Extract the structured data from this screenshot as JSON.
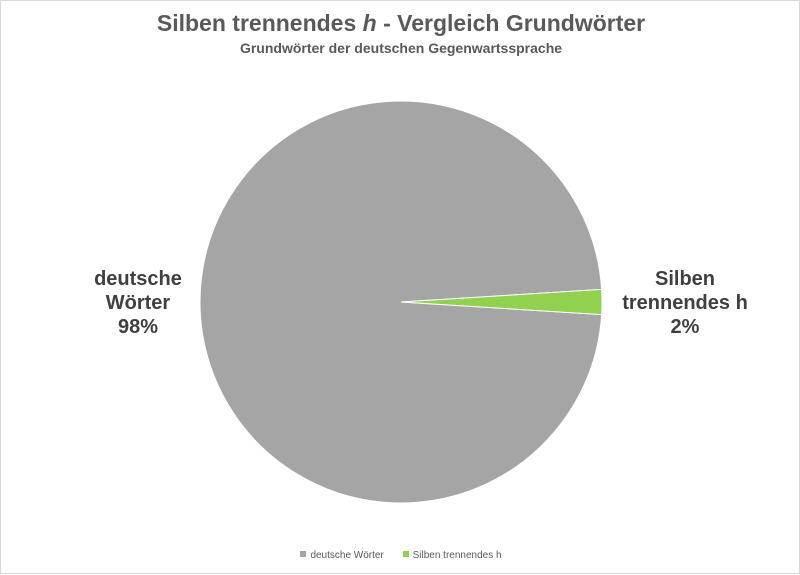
{
  "chart_data": {
    "type": "pie",
    "title_prefix": "Silben trennendes ",
    "title_italic": "h",
    "title_suffix": " - Vergleich Grundwörter",
    "subtitle": "Grundwörter der deutschen Gegenwartssprache",
    "slices": [
      {
        "label": "deutsche Wörter",
        "data_label_lines": [
          "deutsche",
          "Wörter",
          "98%"
        ],
        "value": 98,
        "color": "#a5a5a5"
      },
      {
        "label": "Silben trennendes h",
        "data_label_lines": [
          "Silben",
          "trennendes h",
          "2%"
        ],
        "value": 2,
        "color": "#92d050"
      }
    ],
    "legend_position": "bottom"
  }
}
